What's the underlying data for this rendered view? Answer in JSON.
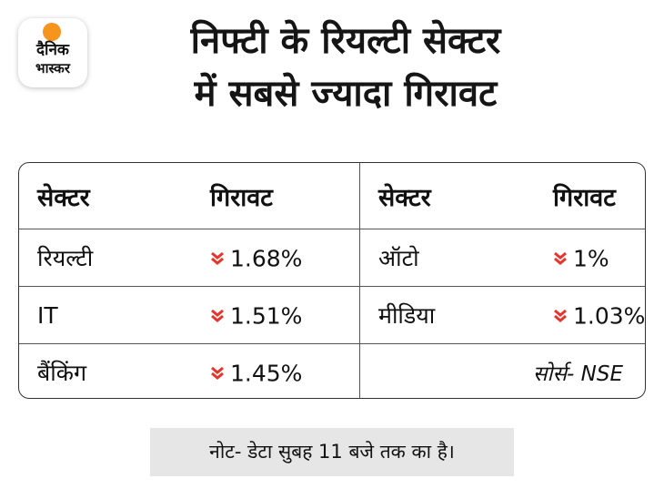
{
  "logo": {
    "line1": "दैनिक",
    "line2": "भास्कर",
    "accent_color": "#f7941d"
  },
  "title": {
    "line1": "निफ्टी के रियल्टी सेक्टर",
    "line2": "में सबसे ज्यादा गिरावट"
  },
  "chart_data": {
    "type": "table",
    "headers": [
      "सेक्टर",
      "गिरावट",
      "सेक्टर",
      "गिरावट"
    ],
    "rows": [
      {
        "sector_left": "रियल्टी",
        "decline_left": "1.68%",
        "sector_right": "ऑटो",
        "decline_right": "1%"
      },
      {
        "sector_left": "IT",
        "decline_left": "1.51%",
        "sector_right": "मीडिया",
        "decline_right": "1.03%"
      },
      {
        "sector_left": "बैंकिंग",
        "decline_left": "1.45%",
        "sector_right": "",
        "decline_right": ""
      }
    ],
    "source": "सोर्स-  NSE",
    "arrow_color": "#e8352b",
    "arrow_icon": "double-chevron-down-icon"
  },
  "note": "नोट- डेटा सुबह 11 बजे तक का है।"
}
